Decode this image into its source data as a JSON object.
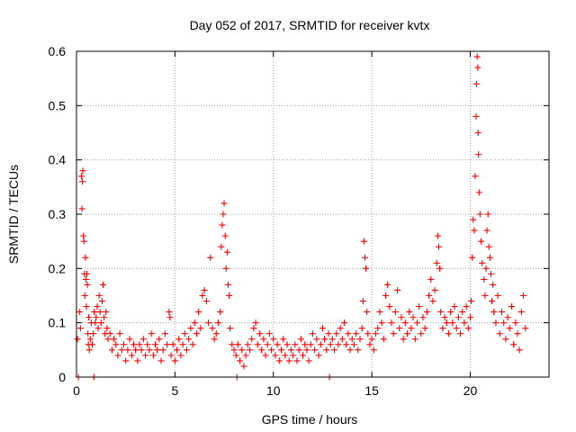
{
  "chart_data": {
    "type": "scatter",
    "title": "Day 052 of 2017, SRMTID for receiver kvtx",
    "xlabel": "GPS time / hours",
    "ylabel": "SRMTID / TECUs",
    "xlim": [
      0,
      24
    ],
    "ylim": [
      0,
      0.6
    ],
    "x_ticks": [
      0,
      5,
      10,
      15,
      20
    ],
    "y_ticks": [
      0,
      0.1,
      0.2,
      0.3,
      0.4,
      0.5,
      0.6
    ],
    "x_tick_labels": [
      "0",
      "5",
      "10",
      "15",
      "20"
    ],
    "y_tick_labels": [
      "0",
      "0.1",
      "0.2",
      "0.3",
      "0.4",
      "0.5",
      "0.6"
    ],
    "grid": true,
    "marker": "+",
    "series_color": "#ff0000",
    "series": [
      {
        "name": "SRMTID",
        "points": [
          [
            0.05,
            0.07
          ],
          [
            0.1,
            0.0
          ],
          [
            0.15,
            0.12
          ],
          [
            0.2,
            0.09
          ],
          [
            0.25,
            0.37
          ],
          [
            0.28,
            0.31
          ],
          [
            0.3,
            0.36
          ],
          [
            0.32,
            0.38
          ],
          [
            0.35,
            0.26
          ],
          [
            0.38,
            0.25
          ],
          [
            0.4,
            0.19
          ],
          [
            0.42,
            0.15
          ],
          [
            0.45,
            0.22
          ],
          [
            0.48,
            0.18
          ],
          [
            0.5,
            0.13
          ],
          [
            0.52,
            0.19
          ],
          [
            0.55,
            0.17
          ],
          [
            0.58,
            0.08
          ],
          [
            0.6,
            0.06
          ],
          [
            0.62,
            0.11
          ],
          [
            0.65,
            0.05
          ],
          [
            0.7,
            0.07
          ],
          [
            0.75,
            0.1
          ],
          [
            0.8,
            0.06
          ],
          [
            0.85,
            0.08
          ],
          [
            0.88,
            0.0
          ],
          [
            0.9,
            0.12
          ],
          [
            0.95,
            0.1
          ],
          [
            1.0,
            0.11
          ],
          [
            1.05,
            0.13
          ],
          [
            1.1,
            0.09
          ],
          [
            1.15,
            0.15
          ],
          [
            1.2,
            0.12
          ],
          [
            1.25,
            0.1
          ],
          [
            1.3,
            0.14
          ],
          [
            1.35,
            0.17
          ],
          [
            1.4,
            0.11
          ],
          [
            1.45,
            0.08
          ],
          [
            1.5,
            0.12
          ],
          [
            1.55,
            0.09
          ],
          [
            1.6,
            0.07
          ],
          [
            1.7,
            0.08
          ],
          [
            1.8,
            0.05
          ],
          [
            1.9,
            0.07
          ],
          [
            2.0,
            0.06
          ],
          [
            2.1,
            0.04
          ],
          [
            2.2,
            0.08
          ],
          [
            2.3,
            0.05
          ],
          [
            2.4,
            0.06
          ],
          [
            2.5,
            0.03
          ],
          [
            2.6,
            0.05
          ],
          [
            2.7,
            0.07
          ],
          [
            2.8,
            0.04
          ],
          [
            2.9,
            0.06
          ],
          [
            3.0,
            0.05
          ],
          [
            3.1,
            0.03
          ],
          [
            3.2,
            0.06
          ],
          [
            3.3,
            0.05
          ],
          [
            3.4,
            0.07
          ],
          [
            3.5,
            0.04
          ],
          [
            3.6,
            0.06
          ],
          [
            3.7,
            0.05
          ],
          [
            3.8,
            0.08
          ],
          [
            3.9,
            0.04
          ],
          [
            4.0,
            0.06
          ],
          [
            4.1,
            0.05
          ],
          [
            4.2,
            0.07
          ],
          [
            4.3,
            0.03
          ],
          [
            4.4,
            0.05
          ],
          [
            4.5,
            0.08
          ],
          [
            4.6,
            0.06
          ],
          [
            4.7,
            0.12
          ],
          [
            4.75,
            0.11
          ],
          [
            4.8,
            0.04
          ],
          [
            4.9,
            0.06
          ],
          [
            5.0,
            0.03
          ],
          [
            5.1,
            0.05
          ],
          [
            5.2,
            0.07
          ],
          [
            5.3,
            0.04
          ],
          [
            5.4,
            0.06
          ],
          [
            5.5,
            0.08
          ],
          [
            5.6,
            0.05
          ],
          [
            5.7,
            0.07
          ],
          [
            5.8,
            0.09
          ],
          [
            5.9,
            0.06
          ],
          [
            6.0,
            0.1
          ],
          [
            6.1,
            0.08
          ],
          [
            6.2,
            0.12
          ],
          [
            6.3,
            0.09
          ],
          [
            6.4,
            0.15
          ],
          [
            6.5,
            0.16
          ],
          [
            6.6,
            0.14
          ],
          [
            6.7,
            0.1
          ],
          [
            6.8,
            0.22
          ],
          [
            6.9,
            0.09
          ],
          [
            7.0,
            0.07
          ],
          [
            7.1,
            0.08
          ],
          [
            7.2,
            0.1
          ],
          [
            7.3,
            0.12
          ],
          [
            7.35,
            0.24
          ],
          [
            7.4,
            0.28
          ],
          [
            7.45,
            0.3
          ],
          [
            7.5,
            0.32
          ],
          [
            7.55,
            0.26
          ],
          [
            7.6,
            0.2
          ],
          [
            7.65,
            0.23
          ],
          [
            7.7,
            0.17
          ],
          [
            7.75,
            0.15
          ],
          [
            7.8,
            0.09
          ],
          [
            7.9,
            0.06
          ],
          [
            8.0,
            0.05
          ],
          [
            8.1,
            0.04
          ],
          [
            8.15,
            0.0
          ],
          [
            8.2,
            0.06
          ],
          [
            8.3,
            0.03
          ],
          [
            8.4,
            0.05
          ],
          [
            8.5,
            0.02
          ],
          [
            8.6,
            0.04
          ],
          [
            8.7,
            0.06
          ],
          [
            8.8,
            0.05
          ],
          [
            8.9,
            0.07
          ],
          [
            9.0,
            0.09
          ],
          [
            9.1,
            0.1
          ],
          [
            9.2,
            0.06
          ],
          [
            9.3,
            0.08
          ],
          [
            9.4,
            0.05
          ],
          [
            9.5,
            0.07
          ],
          [
            9.6,
            0.04
          ],
          [
            9.7,
            0.06
          ],
          [
            9.8,
            0.08
          ],
          [
            9.9,
            0.05
          ],
          [
            10.0,
            0.07
          ],
          [
            10.1,
            0.04
          ],
          [
            10.2,
            0.06
          ],
          [
            10.3,
            0.03
          ],
          [
            10.4,
            0.05
          ],
          [
            10.5,
            0.07
          ],
          [
            10.6,
            0.04
          ],
          [
            10.7,
            0.06
          ],
          [
            10.8,
            0.03
          ],
          [
            10.9,
            0.05
          ],
          [
            11.0,
            0.04
          ],
          [
            11.1,
            0.06
          ],
          [
            11.2,
            0.03
          ],
          [
            11.3,
            0.05
          ],
          [
            11.4,
            0.07
          ],
          [
            11.5,
            0.04
          ],
          [
            11.6,
            0.06
          ],
          [
            11.7,
            0.05
          ],
          [
            11.8,
            0.03
          ],
          [
            11.9,
            0.06
          ],
          [
            12.0,
            0.08
          ],
          [
            12.1,
            0.05
          ],
          [
            12.2,
            0.07
          ],
          [
            12.3,
            0.04
          ],
          [
            12.4,
            0.06
          ],
          [
            12.5,
            0.09
          ],
          [
            12.6,
            0.07
          ],
          [
            12.7,
            0.05
          ],
          [
            12.8,
            0.08
          ],
          [
            12.85,
            0.0
          ],
          [
            12.9,
            0.06
          ],
          [
            13.0,
            0.07
          ],
          [
            13.1,
            0.05
          ],
          [
            13.2,
            0.08
          ],
          [
            13.3,
            0.06
          ],
          [
            13.4,
            0.09
          ],
          [
            13.5,
            0.07
          ],
          [
            13.6,
            0.1
          ],
          [
            13.7,
            0.06
          ],
          [
            13.8,
            0.08
          ],
          [
            13.9,
            0.05
          ],
          [
            14.0,
            0.07
          ],
          [
            14.1,
            0.06
          ],
          [
            14.2,
            0.08
          ],
          [
            14.3,
            0.05
          ],
          [
            14.4,
            0.07
          ],
          [
            14.5,
            0.09
          ],
          [
            14.55,
            0.14
          ],
          [
            14.6,
            0.25
          ],
          [
            14.65,
            0.22
          ],
          [
            14.7,
            0.2
          ],
          [
            14.75,
            0.12
          ],
          [
            14.8,
            0.08
          ],
          [
            14.9,
            0.06
          ],
          [
            15.0,
            0.07
          ],
          [
            15.1,
            0.05
          ],
          [
            15.2,
            0.08
          ],
          [
            15.3,
            0.09
          ],
          [
            15.4,
            0.12
          ],
          [
            15.5,
            0.1
          ],
          [
            15.6,
            0.07
          ],
          [
            15.7,
            0.15
          ],
          [
            15.8,
            0.17
          ],
          [
            15.9,
            0.13
          ],
          [
            16.0,
            0.1
          ],
          [
            16.1,
            0.08
          ],
          [
            16.2,
            0.12
          ],
          [
            16.3,
            0.16
          ],
          [
            16.4,
            0.09
          ],
          [
            16.5,
            0.11
          ],
          [
            16.6,
            0.07
          ],
          [
            16.7,
            0.1
          ],
          [
            16.8,
            0.08
          ],
          [
            16.9,
            0.12
          ],
          [
            17.0,
            0.09
          ],
          [
            17.1,
            0.11
          ],
          [
            17.2,
            0.07
          ],
          [
            17.3,
            0.1
          ],
          [
            17.4,
            0.13
          ],
          [
            17.5,
            0.08
          ],
          [
            17.6,
            0.11
          ],
          [
            17.7,
            0.09
          ],
          [
            17.8,
            0.12
          ],
          [
            17.9,
            0.15
          ],
          [
            18.0,
            0.18
          ],
          [
            18.1,
            0.14
          ],
          [
            18.2,
            0.16
          ],
          [
            18.3,
            0.21
          ],
          [
            18.35,
            0.26
          ],
          [
            18.4,
            0.24
          ],
          [
            18.45,
            0.2
          ],
          [
            18.5,
            0.12
          ],
          [
            18.6,
            0.09
          ],
          [
            18.7,
            0.11
          ],
          [
            18.8,
            0.1
          ],
          [
            18.9,
            0.08
          ],
          [
            19.0,
            0.12
          ],
          [
            19.1,
            0.1
          ],
          [
            19.2,
            0.13
          ],
          [
            19.3,
            0.09
          ],
          [
            19.4,
            0.11
          ],
          [
            19.5,
            0.08
          ],
          [
            19.6,
            0.12
          ],
          [
            19.7,
            0.1
          ],
          [
            19.8,
            0.13
          ],
          [
            19.9,
            0.09
          ],
          [
            20.0,
            0.11
          ],
          [
            20.05,
            0.14
          ],
          [
            20.1,
            0.22
          ],
          [
            20.15,
            0.29
          ],
          [
            20.2,
            0.27
          ],
          [
            20.25,
            0.37
          ],
          [
            20.3,
            0.48
          ],
          [
            20.32,
            0.54
          ],
          [
            20.35,
            0.59
          ],
          [
            20.38,
            0.57
          ],
          [
            20.4,
            0.45
          ],
          [
            20.42,
            0.41
          ],
          [
            20.45,
            0.34
          ],
          [
            20.5,
            0.3
          ],
          [
            20.55,
            0.25
          ],
          [
            20.6,
            0.21
          ],
          [
            20.7,
            0.18
          ],
          [
            20.75,
            0.15
          ],
          [
            20.8,
            0.2
          ],
          [
            20.85,
            0.27
          ],
          [
            20.9,
            0.3
          ],
          [
            20.95,
            0.24
          ],
          [
            21.0,
            0.22
          ],
          [
            21.05,
            0.19
          ],
          [
            21.1,
            0.14
          ],
          [
            21.15,
            0.17
          ],
          [
            21.2,
            0.12
          ],
          [
            21.3,
            0.1
          ],
          [
            21.4,
            0.15
          ],
          [
            21.5,
            0.08
          ],
          [
            21.6,
            0.12
          ],
          [
            21.7,
            0.1
          ],
          [
            21.8,
            0.07
          ],
          [
            21.9,
            0.11
          ],
          [
            22.0,
            0.09
          ],
          [
            22.1,
            0.13
          ],
          [
            22.2,
            0.06
          ],
          [
            22.3,
            0.1
          ],
          [
            22.4,
            0.08
          ],
          [
            22.5,
            0.05
          ],
          [
            22.6,
            0.12
          ],
          [
            22.7,
            0.15
          ],
          [
            22.8,
            0.09
          ]
        ]
      }
    ]
  }
}
